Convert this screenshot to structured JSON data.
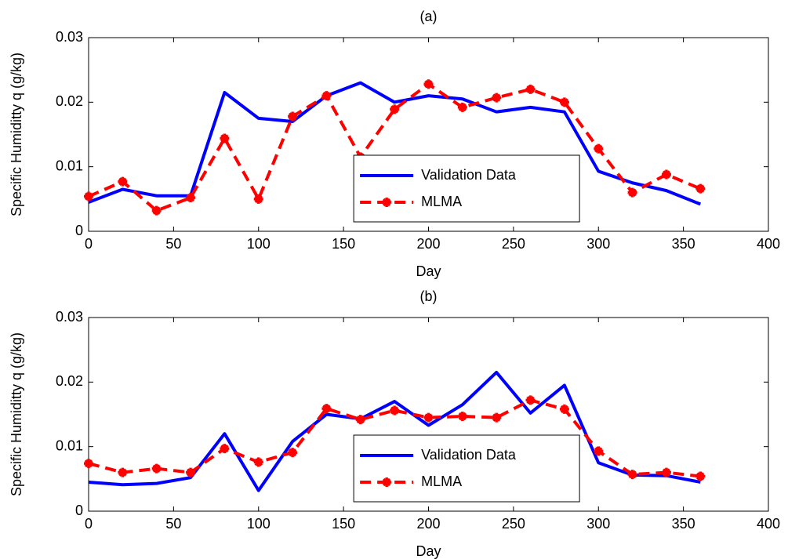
{
  "chart_data": [
    {
      "type": "line",
      "title": "(a)",
      "xlabel": "Day",
      "ylabel": "Specific Humiditty q (g/kg)",
      "x": [
        0,
        20,
        40,
        60,
        80,
        100,
        120,
        140,
        160,
        180,
        200,
        220,
        240,
        260,
        280,
        300,
        320,
        340,
        360
      ],
      "series": [
        {
          "name": "Validation Data",
          "color": "#0000ff",
          "style": "solid",
          "marker": false,
          "values": [
            0.0045,
            0.0065,
            0.0055,
            0.0055,
            0.0215,
            0.0175,
            0.017,
            0.021,
            0.023,
            0.02,
            0.021,
            0.0205,
            0.0185,
            0.0192,
            0.0185,
            0.0093,
            0.0075,
            0.0063,
            0.0042
          ]
        },
        {
          "name": "MLMA",
          "color": "#ff0000",
          "style": "dashed",
          "marker": true,
          "values": [
            0.0054,
            0.0077,
            0.0032,
            0.0052,
            0.0144,
            0.005,
            0.0178,
            0.021,
            0.0115,
            0.0189,
            0.0228,
            0.0192,
            0.0207,
            0.022,
            0.02,
            0.0128,
            0.006,
            0.0088,
            0.0066
          ]
        }
      ],
      "xlim": [
        0,
        400
      ],
      "ylim": [
        0,
        0.03
      ],
      "xticks": [
        0,
        50,
        100,
        150,
        200,
        250,
        300,
        350,
        400
      ],
      "yticks": [
        0,
        0.01,
        0.02,
        0.03
      ],
      "legend": "lower center"
    },
    {
      "type": "line",
      "title": "(b)",
      "xlabel": "Day",
      "ylabel": "Specific Humiditty q (g/kg)",
      "x": [
        0,
        20,
        40,
        60,
        80,
        100,
        120,
        140,
        160,
        180,
        200,
        220,
        240,
        260,
        280,
        300,
        320,
        340,
        360
      ],
      "series": [
        {
          "name": "Validation Data",
          "color": "#0000ff",
          "style": "solid",
          "marker": false,
          "values": [
            0.0045,
            0.0041,
            0.0043,
            0.0052,
            0.012,
            0.0032,
            0.0108,
            0.015,
            0.0143,
            0.017,
            0.0133,
            0.0165,
            0.0215,
            0.0152,
            0.0195,
            0.0075,
            0.0056,
            0.0055,
            0.0045
          ]
        },
        {
          "name": "MLMA",
          "color": "#ff0000",
          "style": "dashed",
          "marker": true,
          "values": [
            0.0074,
            0.006,
            0.0066,
            0.006,
            0.0097,
            0.0076,
            0.0091,
            0.0159,
            0.0142,
            0.0156,
            0.0145,
            0.0147,
            0.0145,
            0.0172,
            0.0158,
            0.0093,
            0.0057,
            0.006,
            0.0054
          ]
        }
      ],
      "xlim": [
        0,
        400
      ],
      "ylim": [
        0,
        0.03
      ],
      "xticks": [
        0,
        50,
        100,
        150,
        200,
        250,
        300,
        350,
        400
      ],
      "yticks": [
        0,
        0.01,
        0.02,
        0.03
      ],
      "legend": "lower center"
    }
  ]
}
